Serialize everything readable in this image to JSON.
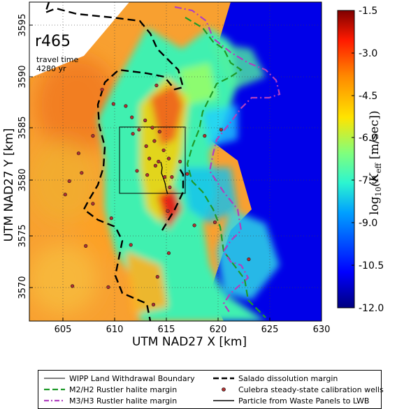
{
  "map": {
    "realization": "r465",
    "travel_time_label": "travel time",
    "travel_time_value": "4280 yr",
    "x_axis_title": "UTM NAD27 X [km]",
    "y_axis_title": "UTM NAD27 Y [km]",
    "x_ticks": [
      "605",
      "610",
      "615",
      "620",
      "625",
      "630"
    ],
    "y_ticks": [
      "3570",
      "3575",
      "3580",
      "3585",
      "3590",
      "3595"
    ],
    "x_range_km": [
      601.5,
      630
    ],
    "y_range_km": [
      3566.5,
      3597.5
    ]
  },
  "colorbar": {
    "title": "log₁₀(K_eff [m/sec])",
    "title_parts": {
      "prefix": "log",
      "sub": "10",
      "mid": "(K",
      "sub2": "eff",
      "suffix": " [m/sec])"
    },
    "ticks": [
      "-1.5",
      "-3.0",
      "-4.5",
      "-6.0",
      "-7.5",
      "-9.0",
      "-10.5",
      "-12.0"
    ],
    "range": [
      -12.0,
      -1.5
    ],
    "colors": [
      "#00007f",
      "#0000ff",
      "#00a0ff",
      "#2cf5d0",
      "#80ff7d",
      "#ffe400",
      "#ff8800",
      "#ff1a00",
      "#7f0000"
    ]
  },
  "legend": {
    "items": [
      {
        "label": "WIPP Land Withdrawal Boundary",
        "style": "thin-solid",
        "color": "#000000"
      },
      {
        "label": "Salado dissolution margin",
        "style": "dashed",
        "color": "#000000"
      },
      {
        "label": "M2/H2 Rustler halite margin",
        "style": "dashed",
        "color": "#228b22"
      },
      {
        "label": "Culebra steady-state calibration wells",
        "style": "dot",
        "color": "#b03030"
      },
      {
        "label": "M3/H3 Rustler halite margin",
        "style": "dash-dot",
        "color": "#b040c0"
      },
      {
        "label": "Particle from Waste Panels to LWB",
        "style": "solid",
        "color": "#000000"
      }
    ]
  },
  "wells": [
    [
      608.6,
      3589.0
    ],
    [
      609.7,
      3587.6
    ],
    [
      610.9,
      3587.4
    ],
    [
      611.5,
      3586.3
    ],
    [
      612.8,
      3586.0
    ],
    [
      613.5,
      3585.3
    ],
    [
      614.2,
      3584.9
    ],
    [
      613.7,
      3584.0
    ],
    [
      612.9,
      3583.5
    ],
    [
      614.6,
      3583.1
    ],
    [
      613.2,
      3582.3
    ],
    [
      614.1,
      3582.0
    ],
    [
      615.1,
      3582.3
    ],
    [
      616.2,
      3582.0
    ],
    [
      612.0,
      3581.1
    ],
    [
      613.0,
      3580.7
    ],
    [
      614.7,
      3580.5
    ],
    [
      615.4,
      3580.5
    ],
    [
      616.9,
      3580.8
    ],
    [
      618.6,
      3584.5
    ],
    [
      612.2,
      3585.1
    ],
    [
      611.6,
      3584.7
    ],
    [
      607.7,
      3584.5
    ],
    [
      606.3,
      3582.8
    ],
    [
      606.6,
      3580.9
    ],
    [
      605.0,
      3578.8
    ],
    [
      607.7,
      3577.9
    ],
    [
      609.5,
      3576.5
    ],
    [
      615.0,
      3577.2
    ],
    [
      617.6,
      3575.8
    ],
    [
      611.4,
      3573.9
    ],
    [
      615.1,
      3573.1
    ],
    [
      614.0,
      3570.8
    ],
    [
      609.2,
      3569.8
    ],
    [
      613.6,
      3568.1
    ],
    [
      619.6,
      3576.1
    ],
    [
      622.9,
      3572.5
    ],
    [
      605.7,
      3569.9
    ],
    [
      607.0,
      3573.8
    ],
    [
      605.4,
      3580.1
    ],
    [
      613.9,
      3589.4
    ],
    [
      620.2,
      3585.1
    ],
    [
      615.2,
      3579.5
    ],
    [
      613.8,
      3581.6
    ]
  ]
}
